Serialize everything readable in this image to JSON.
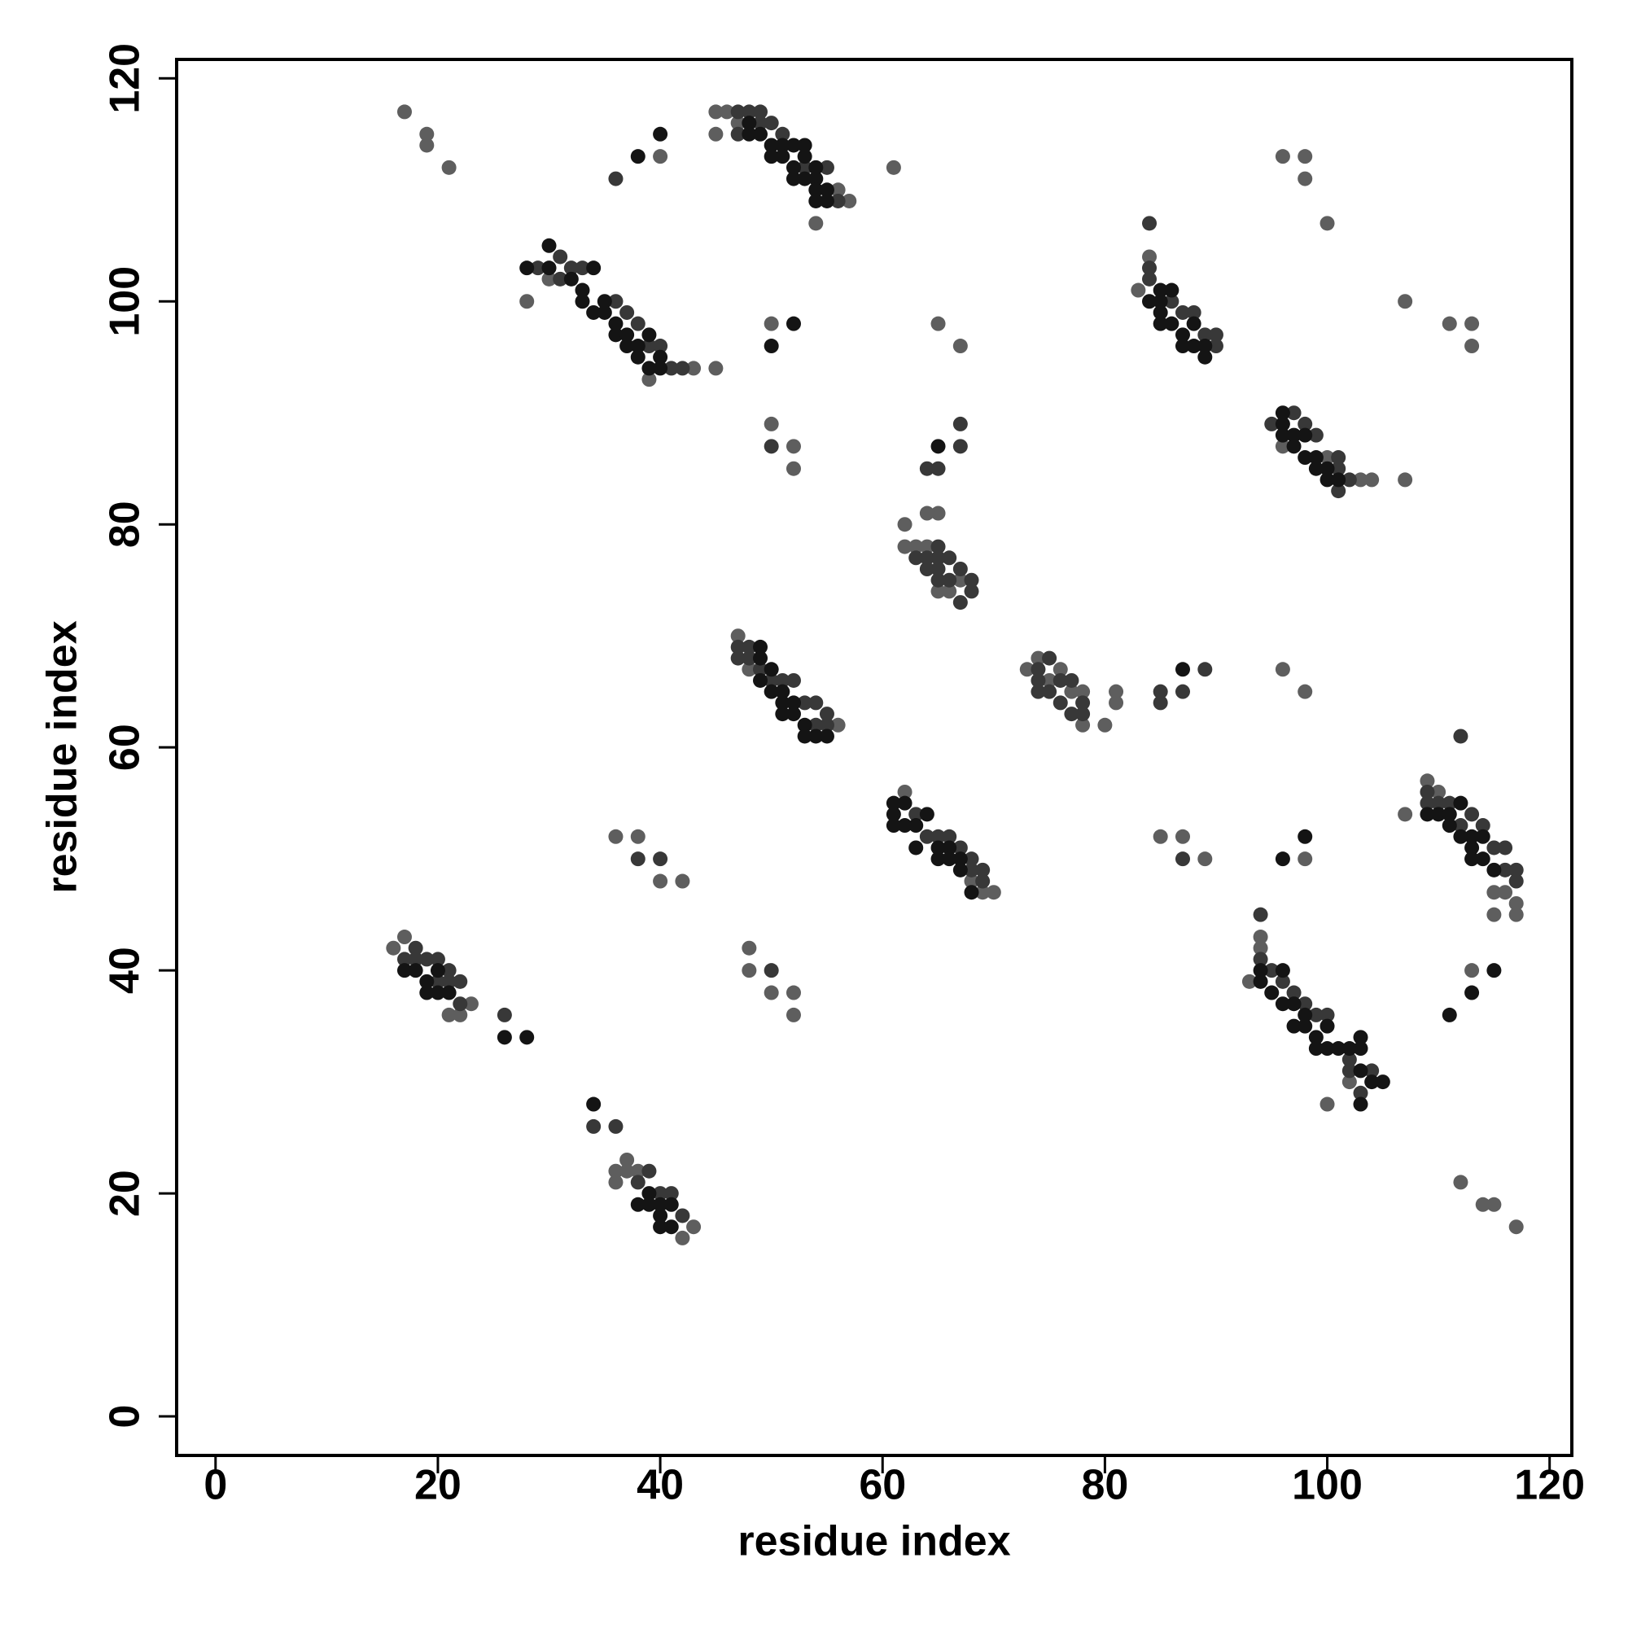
{
  "chart_data": {
    "type": "scatter",
    "x_label": "residue index",
    "y_label": "residue index",
    "xlim": [
      -3.5,
      122
    ],
    "ylim": [
      -3.5,
      121.7
    ],
    "xticks": [
      0,
      20,
      40,
      60,
      80,
      100,
      120
    ],
    "yticks": [
      0,
      20,
      40,
      60,
      80,
      100,
      120
    ],
    "grid": false,
    "series": [
      {
        "color": "#5e5e5e",
        "x": [
          17,
          19,
          19,
          21,
          40,
          28,
          30,
          39,
          45,
          46,
          47,
          54,
          45,
          61,
          47,
          48,
          62,
          62,
          63,
          64,
          65,
          64,
          66,
          65,
          67,
          73,
          74,
          75,
          76,
          77,
          78,
          78,
          80,
          81,
          81,
          84,
          83,
          96,
          100,
          103,
          104,
          107,
          94,
          94,
          93,
          100,
          102,
          107,
          109,
          110,
          115,
          115,
          116,
          117,
          117,
          16,
          17,
          21,
          22,
          23,
          36,
          36,
          37,
          37,
          38,
          42,
          43,
          36,
          38,
          40,
          42,
          48,
          48,
          50,
          52,
          52,
          50,
          65,
          67,
          50,
          52,
          52,
          85,
          87,
          89,
          98,
          96,
          98,
          96,
          98,
          98,
          100,
          107,
          111,
          113,
          113,
          113,
          112,
          114,
          115,
          117,
          62,
          68,
          69,
          70,
          56,
          57,
          56,
          43,
          45
        ],
        "values": [
          117,
          115,
          114,
          112,
          113,
          100,
          102,
          93,
          117,
          117,
          116,
          107,
          115,
          112,
          70,
          67,
          80,
          78,
          78,
          78,
          81,
          81,
          74,
          74,
          75,
          67,
          68,
          66,
          67,
          65,
          65,
          62,
          62,
          65,
          64,
          104,
          101,
          87,
          86,
          84,
          84,
          84,
          43,
          42,
          39,
          28,
          30,
          54,
          57,
          56,
          47,
          45,
          47,
          46,
          45,
          42,
          43,
          36,
          36,
          37,
          22,
          21,
          23,
          22,
          22,
          16,
          17,
          52,
          52,
          48,
          48,
          42,
          40,
          38,
          38,
          36,
          98,
          98,
          96,
          89,
          87,
          85,
          52,
          52,
          50,
          50,
          67,
          65,
          113,
          113,
          111,
          107,
          100,
          98,
          98,
          96,
          40,
          21,
          19,
          19,
          17,
          56,
          48,
          47,
          47,
          62,
          109,
          110,
          94,
          94
        ]
      },
      {
        "color": "#383838",
        "x": [
          36,
          29,
          31,
          31,
          32,
          33,
          36,
          37,
          38,
          39,
          40,
          41,
          42,
          47,
          48,
          49,
          47,
          49,
          50,
          51,
          53,
          55,
          56,
          47,
          47,
          48,
          48,
          49,
          50,
          51,
          52,
          54,
          55,
          55,
          63,
          64,
          64,
          65,
          65,
          65,
          65,
          66,
          66,
          67,
          67,
          68,
          68,
          64,
          65,
          67,
          67,
          74,
          74,
          74,
          75,
          75,
          76,
          76,
          77,
          77,
          78,
          78,
          85,
          87,
          89,
          84,
          84,
          84,
          86,
          87,
          88,
          89,
          90,
          90,
          95,
          97,
          98,
          99,
          101,
          101,
          101,
          102,
          94,
          94,
          95,
          96,
          97,
          98,
          99,
          100,
          102,
          102,
          103,
          104,
          109,
          109,
          110,
          111,
          112,
          113,
          114,
          115,
          116,
          116,
          117,
          117,
          112,
          17,
          18,
          18,
          19,
          20,
          20,
          21,
          21,
          22,
          22,
          26,
          38,
          39,
          40,
          41,
          42,
          34,
          36,
          38,
          40,
          50,
          50,
          87,
          85,
          63,
          64,
          65,
          66,
          67,
          68,
          68,
          69,
          69,
          53,
          54
        ],
        "values": [
          111,
          103,
          104,
          102,
          103,
          103,
          100,
          99,
          98,
          96,
          96,
          94,
          94,
          117,
          117,
          117,
          115,
          116,
          116,
          115,
          112,
          112,
          109,
          69,
          68,
          69,
          68,
          67,
          66,
          66,
          66,
          64,
          63,
          62,
          77,
          77,
          76,
          78,
          77,
          76,
          75,
          77,
          75,
          76,
          73,
          75,
          74,
          85,
          85,
          89,
          87,
          67,
          66,
          65,
          68,
          65,
          66,
          64,
          66,
          63,
          64,
          63,
          65,
          65,
          67,
          107,
          103,
          102,
          100,
          99,
          99,
          97,
          97,
          96,
          89,
          90,
          89,
          88,
          86,
          85,
          83,
          84,
          45,
          41,
          40,
          39,
          38,
          37,
          36,
          36,
          32,
          31,
          29,
          31,
          56,
          55,
          55,
          55,
          53,
          54,
          53,
          51,
          51,
          49,
          49,
          48,
          61,
          41,
          42,
          41,
          41,
          41,
          39,
          40,
          39,
          39,
          37,
          36,
          21,
          22,
          20,
          20,
          18,
          26,
          26,
          50,
          50,
          40,
          87,
          50,
          64,
          54,
          52,
          52,
          52,
          51,
          50,
          49,
          49,
          48,
          64,
          62
        ]
      },
      {
        "color": "#141414",
        "x": [
          40,
          38,
          28,
          30,
          30,
          32,
          33,
          33,
          34,
          34,
          35,
          35,
          36,
          36,
          37,
          37,
          38,
          38,
          39,
          39,
          40,
          40,
          48,
          48,
          49,
          50,
          50,
          51,
          51,
          52,
          52,
          52,
          53,
          53,
          53,
          54,
          54,
          54,
          54,
          55,
          55,
          49,
          49,
          49,
          50,
          50,
          51,
          51,
          51,
          52,
          52,
          53,
          53,
          54,
          55,
          61,
          61,
          61,
          62,
          62,
          63,
          63,
          64,
          65,
          65,
          66,
          66,
          67,
          67,
          68,
          65,
          87,
          85,
          85,
          85,
          85,
          86,
          86,
          87,
          87,
          88,
          88,
          89,
          89,
          84,
          96,
          96,
          96,
          97,
          97,
          98,
          98,
          99,
          99,
          100,
          100,
          101,
          94,
          94,
          95,
          96,
          96,
          97,
          97,
          98,
          98,
          99,
          99,
          100,
          100,
          101,
          102,
          103,
          103,
          103,
          103,
          104,
          105,
          109,
          110,
          111,
          111,
          112,
          112,
          113,
          113,
          113,
          114,
          114,
          115,
          17,
          18,
          19,
          19,
          20,
          20,
          21,
          26,
          28,
          34,
          38,
          39,
          39,
          40,
          40,
          40,
          41,
          41,
          96,
          98,
          111,
          113,
          115,
          50,
          52
        ],
        "values": [
          115,
          113,
          103,
          105,
          103,
          102,
          101,
          100,
          103,
          99,
          100,
          99,
          98,
          97,
          97,
          96,
          95,
          96,
          97,
          94,
          95,
          94,
          116,
          115,
          115,
          114,
          113,
          114,
          113,
          114,
          112,
          111,
          114,
          113,
          111,
          112,
          111,
          110,
          109,
          110,
          109,
          69,
          68,
          66,
          67,
          65,
          65,
          64,
          63,
          64,
          63,
          62,
          61,
          61,
          61,
          55,
          54,
          53,
          55,
          53,
          53,
          51,
          54,
          51,
          50,
          51,
          50,
          50,
          49,
          47,
          87,
          67,
          101,
          100,
          99,
          98,
          101,
          98,
          97,
          96,
          98,
          96,
          96,
          95,
          100,
          90,
          89,
          88,
          88,
          87,
          88,
          86,
          86,
          85,
          85,
          84,
          84,
          40,
          39,
          38,
          40,
          37,
          37,
          35,
          36,
          35,
          34,
          33,
          35,
          33,
          33,
          33,
          34,
          33,
          31,
          28,
          30,
          30,
          54,
          54,
          54,
          53,
          55,
          52,
          52,
          51,
          50,
          52,
          50,
          49,
          40,
          40,
          39,
          38,
          40,
          38,
          38,
          34,
          34,
          28,
          19,
          20,
          19,
          19,
          18,
          17,
          19,
          17,
          50,
          52,
          36,
          38,
          40,
          96,
          98
        ]
      }
    ]
  }
}
